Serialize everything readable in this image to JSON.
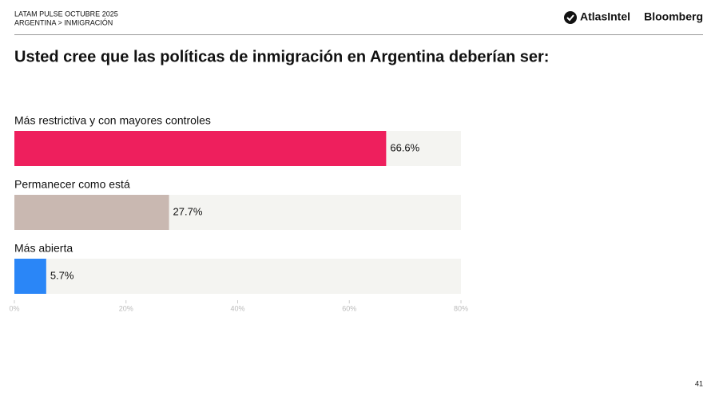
{
  "header": {
    "survey": "LATAM PULSE OCTUBRE 2025",
    "section": "ARGENTINA > INMIGRACIÓN",
    "logo_1": "AtlasIntel",
    "logo_2": "Bloomberg"
  },
  "page_number": "41",
  "chart_data": {
    "type": "hbar",
    "title": "Usted cree que las políticas de inmigración en Argentina deberían ser:",
    "categories": [
      "Más restrictiva y con mayores controles",
      "Permanecer como está",
      "Más abierta"
    ],
    "values": [
      66.6,
      27.7,
      5.7
    ],
    "value_labels": [
      "66.6%",
      "27.7%",
      "5.7%"
    ],
    "colors": [
      "#ee1f5d",
      "#c9b8b1",
      "#2a86f7"
    ],
    "track_color": "#f4f4f1",
    "xlim": [
      0,
      80
    ],
    "xticks": [
      {
        "value": 0,
        "label": "0%"
      },
      {
        "value": 20,
        "label": "20%"
      },
      {
        "value": 40,
        "label": "40%"
      },
      {
        "value": 60,
        "label": "60%"
      },
      {
        "value": 80,
        "label": "80%"
      }
    ]
  }
}
